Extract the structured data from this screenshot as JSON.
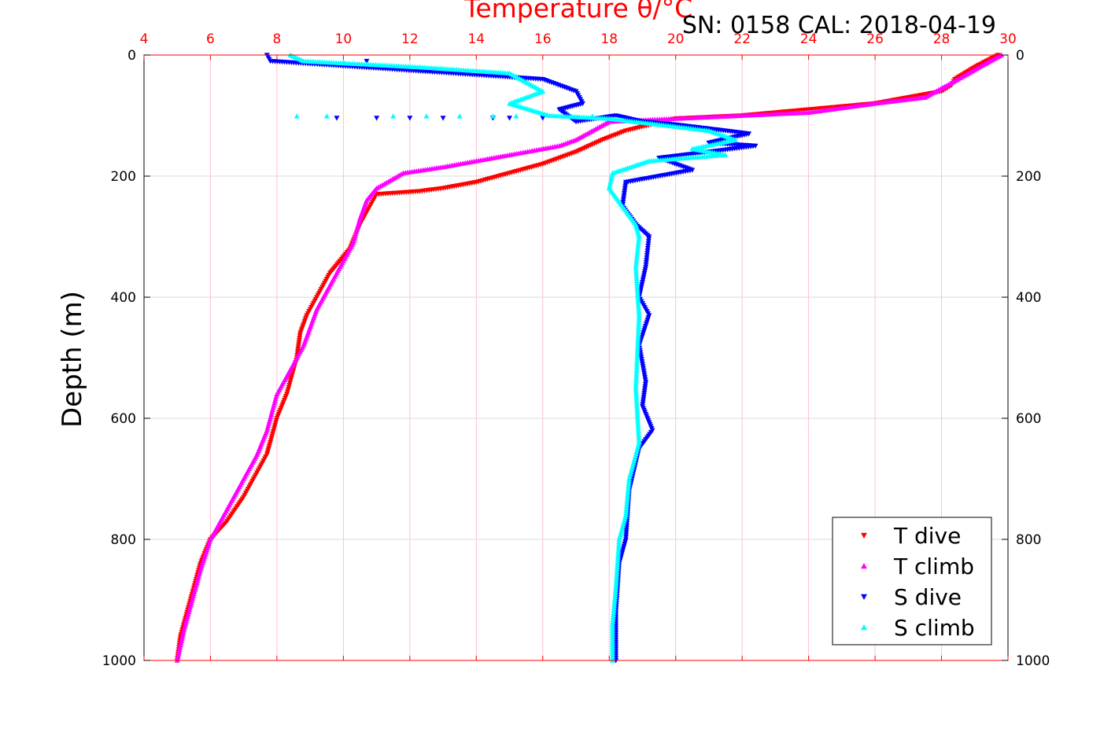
{
  "chart_data": {
    "type": "scatter",
    "title": "Temperature θ/°C",
    "subtitle": "SN: 0158  CAL: 2018-04-19",
    "xlabel": "",
    "ylabel": "Depth (m)",
    "xlim": [
      4,
      30
    ],
    "ylim": [
      0,
      1000
    ],
    "y_reversed": true,
    "x_ticks": [
      "4",
      "6",
      "8",
      "10",
      "12",
      "14",
      "16",
      "18",
      "20",
      "22",
      "24",
      "26",
      "28",
      "30"
    ],
    "y_ticks": [
      "0",
      "200",
      "400",
      "600",
      "800",
      "1000"
    ],
    "grid": true,
    "legend_position": "bottom-right",
    "colors": {
      "title": "#ff0000",
      "x_axis": "#ff0000",
      "x_grid": "#ffc0cb",
      "y_grid": "#d9d9d9"
    },
    "series": [
      {
        "name": "T dive",
        "marker": "triangle-down",
        "color": "#ff0000",
        "x": [
          29.7,
          29.0,
          28.4,
          28.3,
          28.0,
          26.0,
          24.0,
          22.0,
          20.0,
          18.5,
          17.8,
          17.0,
          16.0,
          15.0,
          14.0,
          13.0,
          12.3,
          11.0,
          10.8,
          10.5,
          10.2,
          9.6,
          9.2,
          8.9,
          8.7,
          8.6,
          8.3,
          8.0,
          7.8,
          7.7,
          7.5,
          7.0,
          6.5,
          6.0,
          5.7,
          5.5,
          5.3,
          5.1,
          5.0
        ],
        "y": [
          0,
          20,
          40,
          50,
          60,
          80,
          90,
          100,
          105,
          125,
          140,
          160,
          180,
          195,
          210,
          220,
          225,
          230,
          250,
          280,
          320,
          360,
          400,
          430,
          460,
          500,
          560,
          600,
          640,
          660,
          680,
          730,
          770,
          800,
          840,
          880,
          920,
          960,
          1000
        ]
      },
      {
        "name": "T climb",
        "marker": "triangle-up",
        "color": "#ff00ff",
        "x": [
          29.8,
          29.3,
          28.5,
          27.5,
          26.0,
          24.0,
          22.0,
          20.0,
          18.0,
          17.0,
          16.5,
          15.0,
          14.0,
          13.0,
          11.8,
          11.0,
          10.7,
          10.5,
          10.3,
          9.8,
          9.2,
          8.8,
          8.4,
          8.0,
          7.7,
          7.4,
          7.0,
          6.5,
          6.0,
          5.7,
          5.5,
          5.2,
          5.0
        ],
        "y": [
          0,
          15,
          40,
          70,
          80,
          95,
          100,
          105,
          110,
          140,
          150,
          165,
          175,
          185,
          195,
          220,
          240,
          270,
          310,
          360,
          420,
          480,
          520,
          560,
          620,
          660,
          700,
          750,
          800,
          850,
          890,
          950,
          1000
        ]
      },
      {
        "name": "S dive",
        "marker": "triangle-down",
        "color": "#0000ff",
        "x": [
          7.7,
          7.8,
          16.0,
          17.0,
          17.2,
          16.5,
          17.0,
          18.2,
          19.0,
          20.0,
          21.5,
          22.2,
          21.0,
          22.4,
          21.0,
          19.5,
          20.5,
          18.5,
          18.4,
          18.8,
          19.2,
          19.1,
          18.9,
          19.2,
          18.9,
          19.1,
          19.0,
          19.3,
          18.9,
          18.6,
          18.5,
          18.3,
          18.2,
          18.2
        ],
        "y": [
          0,
          10,
          40,
          60,
          80,
          90,
          110,
          100,
          110,
          115,
          125,
          130,
          145,
          150,
          160,
          170,
          190,
          210,
          250,
          280,
          300,
          350,
          400,
          430,
          480,
          540,
          580,
          620,
          650,
          720,
          800,
          840,
          920,
          1000
        ],
        "outliers_x": [
          9.8,
          11.0,
          12.0,
          13.0,
          14.5,
          15.0,
          16.0,
          17.0,
          10.7
        ],
        "outliers_y": [
          104,
          104,
          104,
          104,
          104,
          104,
          104,
          104,
          10
        ]
      },
      {
        "name": "S climb",
        "marker": "triangle-up",
        "color": "#00ffff",
        "x": [
          8.4,
          8.8,
          12.3,
          15.0,
          16.0,
          15.0,
          16.2,
          18.0,
          19.5,
          21.0,
          21.8,
          20.5,
          21.5,
          19.2,
          18.1,
          18.0,
          18.4,
          18.8,
          18.9,
          18.8,
          18.9,
          18.8,
          18.9,
          18.6,
          18.5,
          18.3,
          18.2,
          18.1,
          18.1
        ],
        "y": [
          0,
          10,
          20,
          30,
          60,
          80,
          100,
          105,
          115,
          125,
          140,
          155,
          165,
          175,
          195,
          220,
          250,
          280,
          300,
          350,
          430,
          550,
          640,
          700,
          760,
          800,
          880,
          940,
          1000
        ],
        "outliers_x": [
          8.6,
          9.5,
          11.5,
          12.5,
          13.5,
          14.5,
          15.2,
          17.5,
          10.0
        ],
        "outliers_y": [
          101,
          101,
          101,
          101,
          101,
          101,
          101,
          101,
          12
        ]
      }
    ]
  }
}
